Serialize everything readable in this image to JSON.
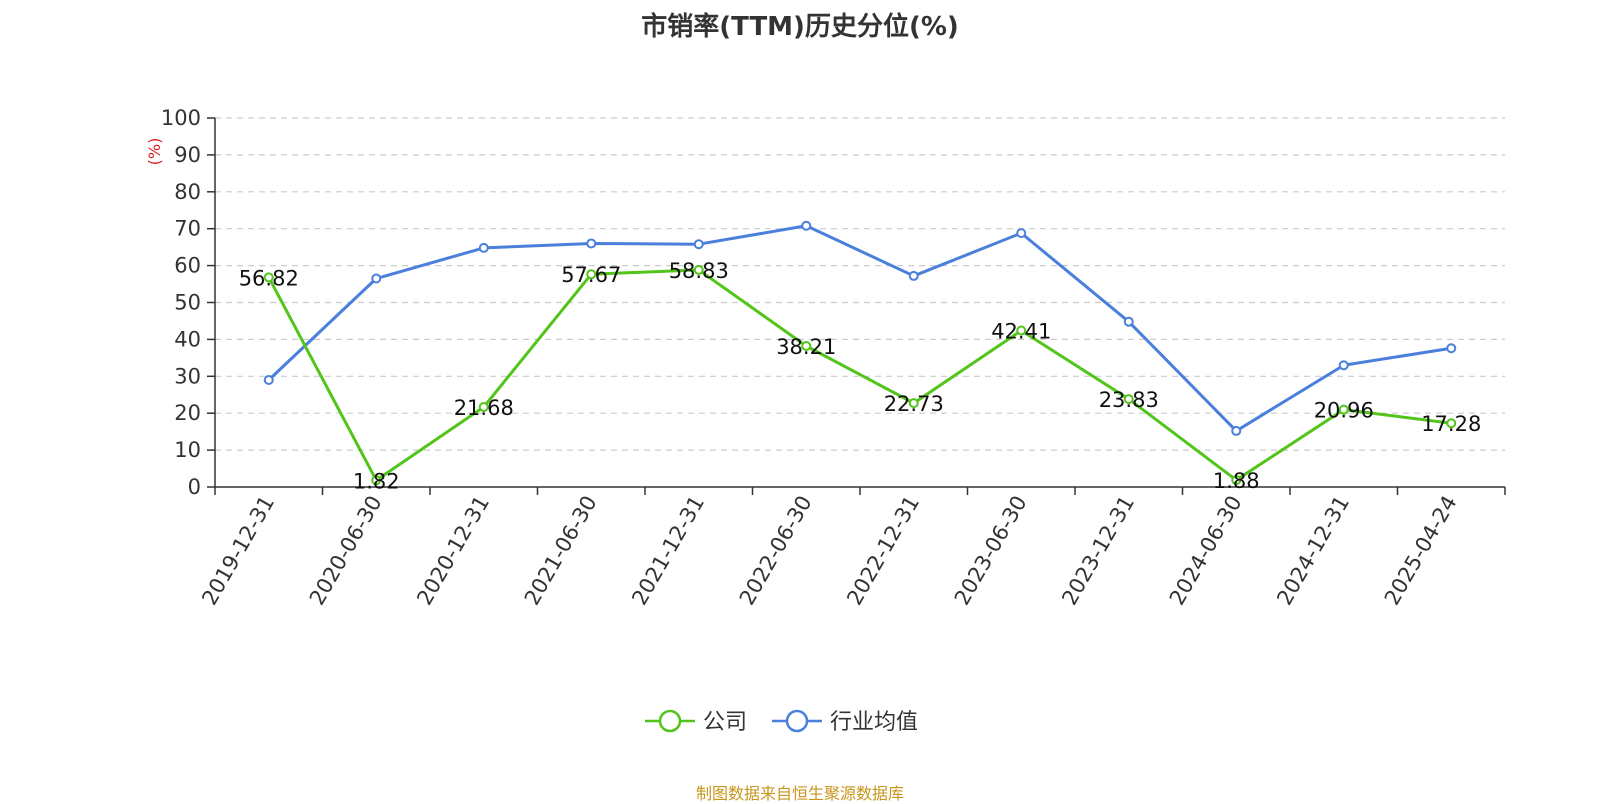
{
  "chart_data": {
    "type": "line",
    "title": "市销率(TTM)历史分位(%)",
    "ylabel": "(%)",
    "ylim": [
      0,
      100
    ],
    "yticks": [
      0,
      10,
      20,
      30,
      40,
      50,
      60,
      70,
      80,
      90,
      100
    ],
    "grid": true,
    "legend_position": "bottom-center",
    "x": [
      "2019-12-31",
      "2020-06-30",
      "2020-12-31",
      "2021-06-30",
      "2021-12-31",
      "2022-06-30",
      "2022-12-31",
      "2023-06-30",
      "2023-12-31",
      "2024-06-30",
      "2024-12-31",
      "2025-04-24"
    ],
    "series": [
      {
        "name": "公司",
        "color": "#52c41a",
        "values": [
          56.82,
          1.82,
          21.68,
          57.67,
          58.83,
          38.21,
          22.73,
          42.41,
          23.83,
          1.88,
          20.96,
          17.28
        ],
        "show_labels": true
      },
      {
        "name": "行业均值",
        "color": "#4a7fdc",
        "values": [
          29.0,
          56.5,
          64.8,
          66.0,
          65.8,
          70.8,
          57.2,
          68.8,
          44.8,
          15.2,
          33.0,
          37.6
        ],
        "show_labels": false
      }
    ],
    "axis_unit_color": "#e02020"
  },
  "footer": {
    "source": "制图数据来自恒生聚源数据库"
  }
}
